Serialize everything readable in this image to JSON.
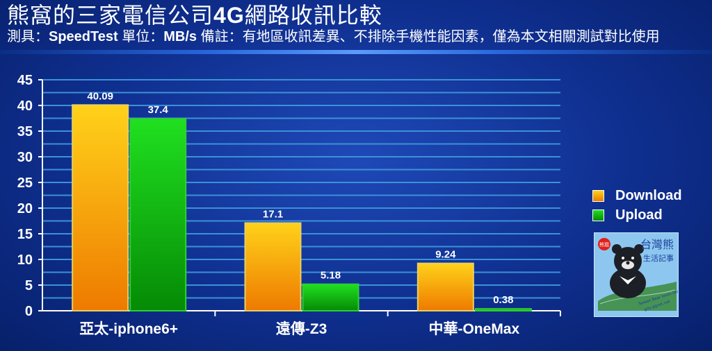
{
  "header": {
    "title_a": "熊窩的三家電信公司",
    "title_b": "4G",
    "title_c": "網路收訊比較",
    "sub_label": "測具：",
    "sub_tool": "SpeedTest",
    "sub_unit_label": " 單位：",
    "sub_unit": "MB/s",
    "sub_note": " 備註：有地區收訊差異、不排除手機性能因素，僅為本文相關測試對比使用"
  },
  "logo": {
    "name": "台灣熊生活記事",
    "badge": "熊窩",
    "tagline": "Taiwan Bear loves Sharing",
    "url": "gnu.pgnet.net"
  },
  "colors": {
    "download_top": "#ffd21a",
    "download_bottom": "#ee7a00",
    "upload_top": "#20e020",
    "upload_bottom": "#058a05",
    "bar_outline_download": "#e8d060",
    "bar_outline_upload": "#30d030",
    "grid": "#3a93d6"
  },
  "chart_data": {
    "type": "bar",
    "categories": [
      "亞太-iphone6+",
      "遠傳-Z3",
      "中華-OneMax"
    ],
    "series": [
      {
        "name": "Download",
        "values": [
          40.09,
          17.1,
          9.24
        ]
      },
      {
        "name": "Upload",
        "values": [
          37.4,
          5.18,
          0.38
        ]
      }
    ],
    "value_labels": [
      [
        "40.09",
        "17.1",
        "9.24"
      ],
      [
        "37.4",
        "5.18",
        "0.38"
      ]
    ],
    "y_ticks": [
      "0",
      "5",
      "10",
      "15",
      "20",
      "25",
      "30",
      "35",
      "40",
      "45"
    ],
    "ylim": [
      0,
      45
    ],
    "grid": true,
    "legend": "right"
  }
}
